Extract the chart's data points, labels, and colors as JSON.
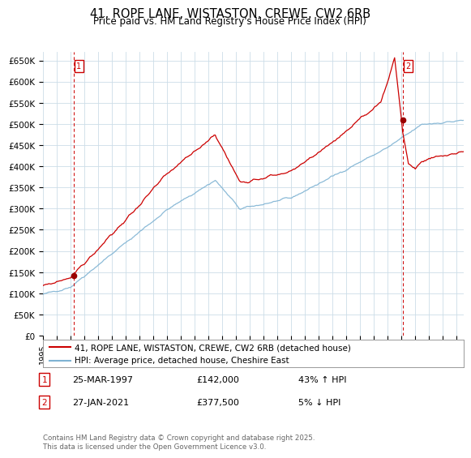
{
  "title_line1": "41, ROPE LANE, WISTASTON, CREWE, CW2 6RB",
  "title_line2": "Price paid vs. HM Land Registry's House Price Index (HPI)",
  "ylim": [
    0,
    670000
  ],
  "yticks": [
    0,
    50000,
    100000,
    150000,
    200000,
    250000,
    300000,
    350000,
    400000,
    450000,
    500000,
    550000,
    600000,
    650000
  ],
  "ytick_labels": [
    "£0",
    "£50K",
    "£100K",
    "£150K",
    "£200K",
    "£250K",
    "£300K",
    "£350K",
    "£400K",
    "£450K",
    "£500K",
    "£550K",
    "£600K",
    "£650K"
  ],
  "marker1_year": 1997.22,
  "marker1_price": 142000,
  "marker2_year": 2021.08,
  "marker2_price": 377500,
  "legend_line1": "41, ROPE LANE, WISTASTON, CREWE, CW2 6RB (detached house)",
  "legend_line2": "HPI: Average price, detached house, Cheshire East",
  "line_color_red": "#cc0000",
  "line_color_blue": "#7fb3d3",
  "plot_bg_color": "#ffffff",
  "grid_color": "#ccddee",
  "marker1_date_str": "25-MAR-1997",
  "marker1_price_str": "£142,000",
  "marker1_pct_str": "43% ↑ HPI",
  "marker2_date_str": "27-JAN-2021",
  "marker2_price_str": "£377,500",
  "marker2_pct_str": "5% ↓ HPI",
  "footnote": "Contains HM Land Registry data © Crown copyright and database right 2025.\nThis data is licensed under the Open Government Licence v3.0."
}
